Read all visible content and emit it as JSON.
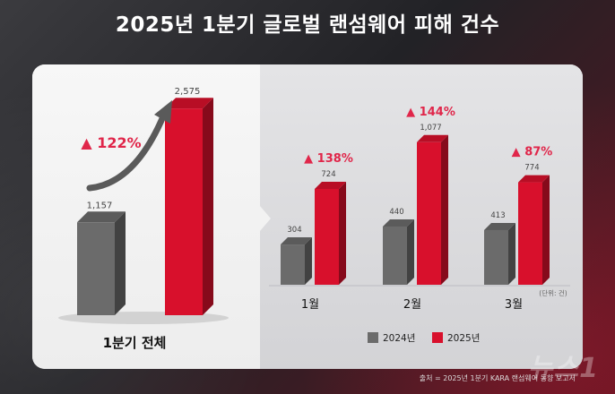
{
  "title": "2025년 1분기 글로벌 랜섬웨어 피해 건수",
  "colors": {
    "y2024": "#6b6b6b",
    "y2025": "#d8102c",
    "accent": "#e0264a"
  },
  "chart_data": [
    {
      "type": "bar",
      "categories": [
        "1분기 전체"
      ],
      "series": [
        {
          "name": "2024년",
          "values": [
            1157
          ]
        },
        {
          "name": "2025년",
          "values": [
            2575
          ]
        }
      ],
      "data_labels": [
        "1,157",
        "2,575"
      ],
      "annotations": [
        "▲ 122%"
      ],
      "ylim": [
        0,
        2700
      ]
    },
    {
      "type": "bar",
      "categories": [
        "1월",
        "2월",
        "3월"
      ],
      "series": [
        {
          "name": "2024년",
          "values": [
            304,
            440,
            413
          ]
        },
        {
          "name": "2025년",
          "values": [
            724,
            1077,
            774
          ]
        }
      ],
      "data_labels": {
        "2024년": [
          "304",
          "440",
          "413"
        ],
        "2025년": [
          "724",
          "1,077",
          "774"
        ]
      },
      "annotations": [
        "▲ 138%",
        "▲ 144%",
        "▲ 87%"
      ],
      "unit_note": "(단위: 건)",
      "legend": [
        "2024년",
        "2025년"
      ],
      "legend_position": "bottom",
      "ylim": [
        0,
        1150
      ]
    }
  ],
  "source": "출처 = 2025년 1분기 KARA 랜섬웨어 동향 보고서",
  "watermark": "뉴스1"
}
